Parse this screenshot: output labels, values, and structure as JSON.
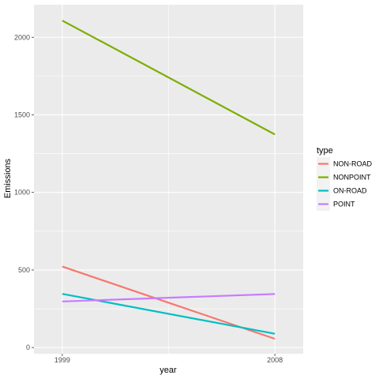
{
  "chart_data": {
    "type": "line",
    "xlabel": "year",
    "ylabel": "Emissions",
    "x": [
      1999,
      2008
    ],
    "x_tick_labels": [
      "1999",
      "2008"
    ],
    "xlim": [
      1997.8,
      2009.2
    ],
    "ylim": [
      -40,
      2210
    ],
    "y_ticks": [
      0,
      500,
      1000,
      1500,
      2000
    ],
    "y_tick_labels": [
      "0",
      "500",
      "1000",
      "1500",
      "2000"
    ],
    "grid": true,
    "legend": {
      "title": "type",
      "position": "right"
    },
    "series": [
      {
        "name": "NON-ROAD",
        "color": "#F8766D",
        "values": [
          522,
          56
        ]
      },
      {
        "name": "NONPOINT",
        "color": "#7CAE00",
        "values": [
          2108,
          1374
        ]
      },
      {
        "name": "ON-ROAD",
        "color": "#00BFC4",
        "values": [
          346,
          89
        ]
      },
      {
        "name": "POINT",
        "color": "#C77CFF",
        "values": [
          297,
          345
        ]
      }
    ],
    "panel_background": "#EBEBEB",
    "gridline_color": "#FFFFFF"
  }
}
